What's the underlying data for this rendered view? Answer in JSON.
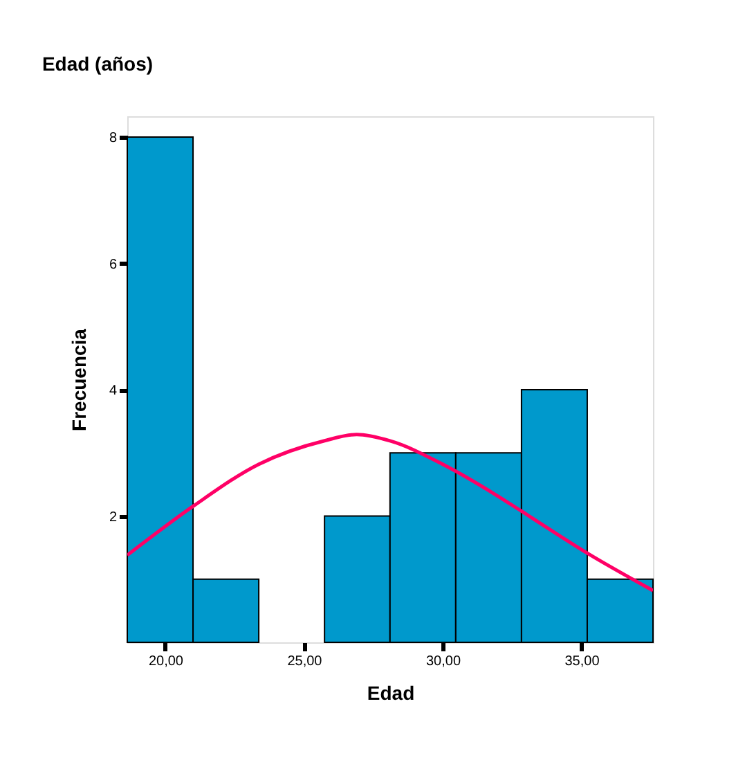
{
  "chart_data": {
    "type": "histogram",
    "title": "Edad (años)",
    "xlabel": "Edad",
    "ylabel": "Frecuencia",
    "bins": [
      18.63,
      21.0,
      23.37,
      25.74,
      28.1,
      30.47,
      32.84,
      35.21,
      37.58
    ],
    "values": [
      8,
      1,
      0,
      2,
      3,
      3,
      4,
      1
    ],
    "color": "#0099cc",
    "xlim": [
      18.63,
      37.58
    ],
    "xticks": [
      {
        "value": 20,
        "label": "20,00"
      },
      {
        "value": 25,
        "label": "25,00"
      },
      {
        "value": 30,
        "label": "30,00"
      },
      {
        "value": 35,
        "label": "35,00"
      }
    ],
    "ylim": [
      0,
      8.33
    ],
    "yticks": [
      2,
      4,
      6,
      8
    ],
    "grid": false,
    "series": [
      {
        "type": "line",
        "color": "#ff0066",
        "x": [
          18.63,
          21.02,
          23.37,
          25.72,
          26.9,
          28.1,
          30.0,
          31.9,
          32.83,
          35.22,
          37.58
        ],
        "values": [
          1.38,
          2.16,
          2.82,
          3.19,
          3.29,
          3.19,
          2.82,
          2.34,
          2.08,
          1.41,
          0.82
        ]
      }
    ]
  }
}
